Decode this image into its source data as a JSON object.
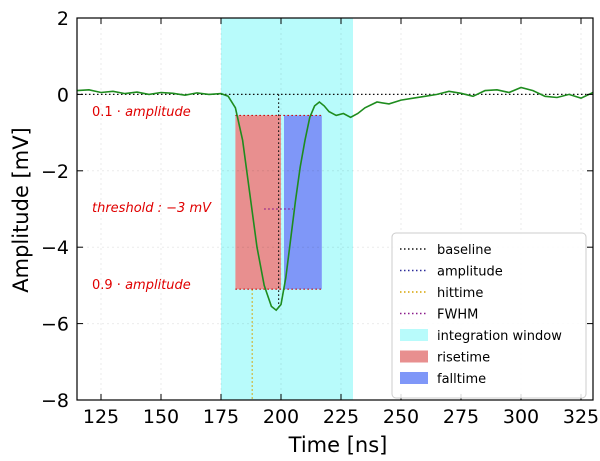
{
  "chart_data": {
    "type": "line",
    "xlabel": "Time [ns]",
    "ylabel": "Amplitude [mV]",
    "xlim": [
      115,
      330
    ],
    "ylim": [
      -8,
      2
    ],
    "x_ticks": [
      "125",
      "150",
      "175",
      "200",
      "225",
      "250",
      "275",
      "300",
      "325"
    ],
    "x_tick_values": [
      125,
      150,
      175,
      200,
      225,
      250,
      275,
      300,
      325
    ],
    "y_ticks": [
      "2",
      "0",
      "−2",
      "−4",
      "−6",
      "−8"
    ],
    "y_tick_values": [
      2,
      0,
      -2,
      -4,
      -6,
      -8
    ],
    "grid": true,
    "legend_position": "lower-right",
    "colors": {
      "signal": "#1e8c1e",
      "annotation_text": "#e00000",
      "integration_window": "#b8fbfb",
      "risetime": "#e88f8f",
      "falltime": "#7f97f8"
    },
    "signal": {
      "x": [
        115,
        120,
        125,
        130,
        135,
        140,
        145,
        150,
        155,
        160,
        165,
        170,
        175,
        178,
        181,
        184,
        187,
        190,
        193,
        196,
        198,
        200,
        202,
        204,
        206,
        208,
        210,
        212,
        214,
        216,
        218,
        220,
        223,
        226,
        229,
        232,
        235,
        240,
        245,
        250,
        255,
        260,
        265,
        270,
        275,
        280,
        285,
        290,
        295,
        300,
        305,
        310,
        315,
        320,
        325,
        330
      ],
      "y": [
        0.1,
        0.12,
        0.05,
        0.08,
        0.02,
        0.06,
        0.0,
        0.05,
        0.03,
        -0.02,
        0.04,
        0.0,
        0.02,
        -0.05,
        -0.35,
        -1.2,
        -2.6,
        -4.0,
        -5.0,
        -5.55,
        -5.65,
        -5.5,
        -4.8,
        -3.8,
        -2.8,
        -1.9,
        -1.2,
        -0.6,
        -0.3,
        -0.2,
        -0.3,
        -0.45,
        -0.55,
        -0.5,
        -0.6,
        -0.5,
        -0.35,
        -0.2,
        -0.25,
        -0.15,
        -0.1,
        -0.05,
        0.0,
        0.08,
        0.03,
        -0.05,
        0.1,
        0.12,
        0.05,
        0.18,
        0.1,
        -0.05,
        -0.08,
        0.0,
        -0.1,
        0.05
      ]
    },
    "baseline": 0,
    "amplitude_time": 199,
    "amplitude_level": -5.65,
    "hittime": 188,
    "threshold": -3,
    "level_10": -0.55,
    "level_90": -5.1,
    "fwhm_range": [
      193,
      205
    ],
    "integration_window": [
      175,
      230
    ],
    "risetime_range": [
      181,
      200
    ],
    "falltime_range": [
      200,
      217
    ],
    "annotations": {
      "amp10_prefix": "0.1 · ",
      "amp10_word": "amplitude",
      "threshold_text": "threshold : −3 mV",
      "amp90_prefix": "0.9 · ",
      "amp90_word": "amplitude"
    },
    "legend": [
      "baseline",
      "amplitude",
      "hittime",
      "FWHM",
      "integration window",
      "risetime",
      "falltime"
    ]
  }
}
